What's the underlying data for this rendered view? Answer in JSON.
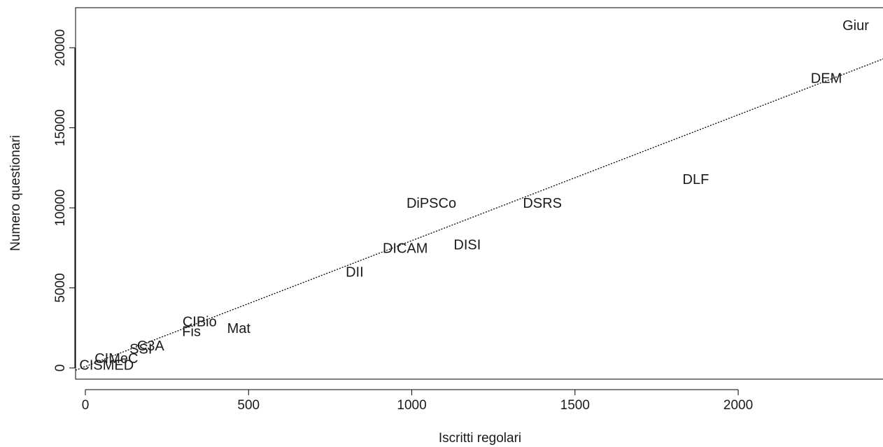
{
  "chart_data": {
    "type": "scatter",
    "title": "",
    "xlabel": "Iscritti regolari",
    "ylabel": "Numero questionari",
    "xlim": [
      -30,
      2450
    ],
    "ylim": [
      -700,
      22500
    ],
    "x_ticks": [
      0,
      500,
      1000,
      1500,
      2000
    ],
    "y_ticks": [
      0,
      5000,
      10000,
      15000,
      20000
    ],
    "grid": false,
    "legend": "none",
    "marker": "text-labels",
    "points": [
      {
        "label": "Giur",
        "x": 2360,
        "y": 21400
      },
      {
        "label": "DEM",
        "x": 2270,
        "y": 18100
      },
      {
        "label": "DLF",
        "x": 1870,
        "y": 11800
      },
      {
        "label": "DSRS",
        "x": 1400,
        "y": 10300
      },
      {
        "label": "DiPSCo",
        "x": 1060,
        "y": 10300
      },
      {
        "label": "DISI",
        "x": 1170,
        "y": 7700
      },
      {
        "label": "DICAM",
        "x": 980,
        "y": 7500
      },
      {
        "label": "DII",
        "x": 825,
        "y": 6000
      },
      {
        "label": "Mat",
        "x": 470,
        "y": 2500
      },
      {
        "label": "CIBio",
        "x": 350,
        "y": 2900
      },
      {
        "label": "Fis",
        "x": 325,
        "y": 2300
      },
      {
        "label": "C3A",
        "x": 200,
        "y": 1400
      },
      {
        "label": "SSI",
        "x": 170,
        "y": 1200
      },
      {
        "label": "CIMeC",
        "x": 95,
        "y": 600
      },
      {
        "label": "CISMED",
        "x": 65,
        "y": 200
      }
    ],
    "trendline": {
      "style": "dotted",
      "intercept": 90,
      "slope": 7.86
    }
  }
}
